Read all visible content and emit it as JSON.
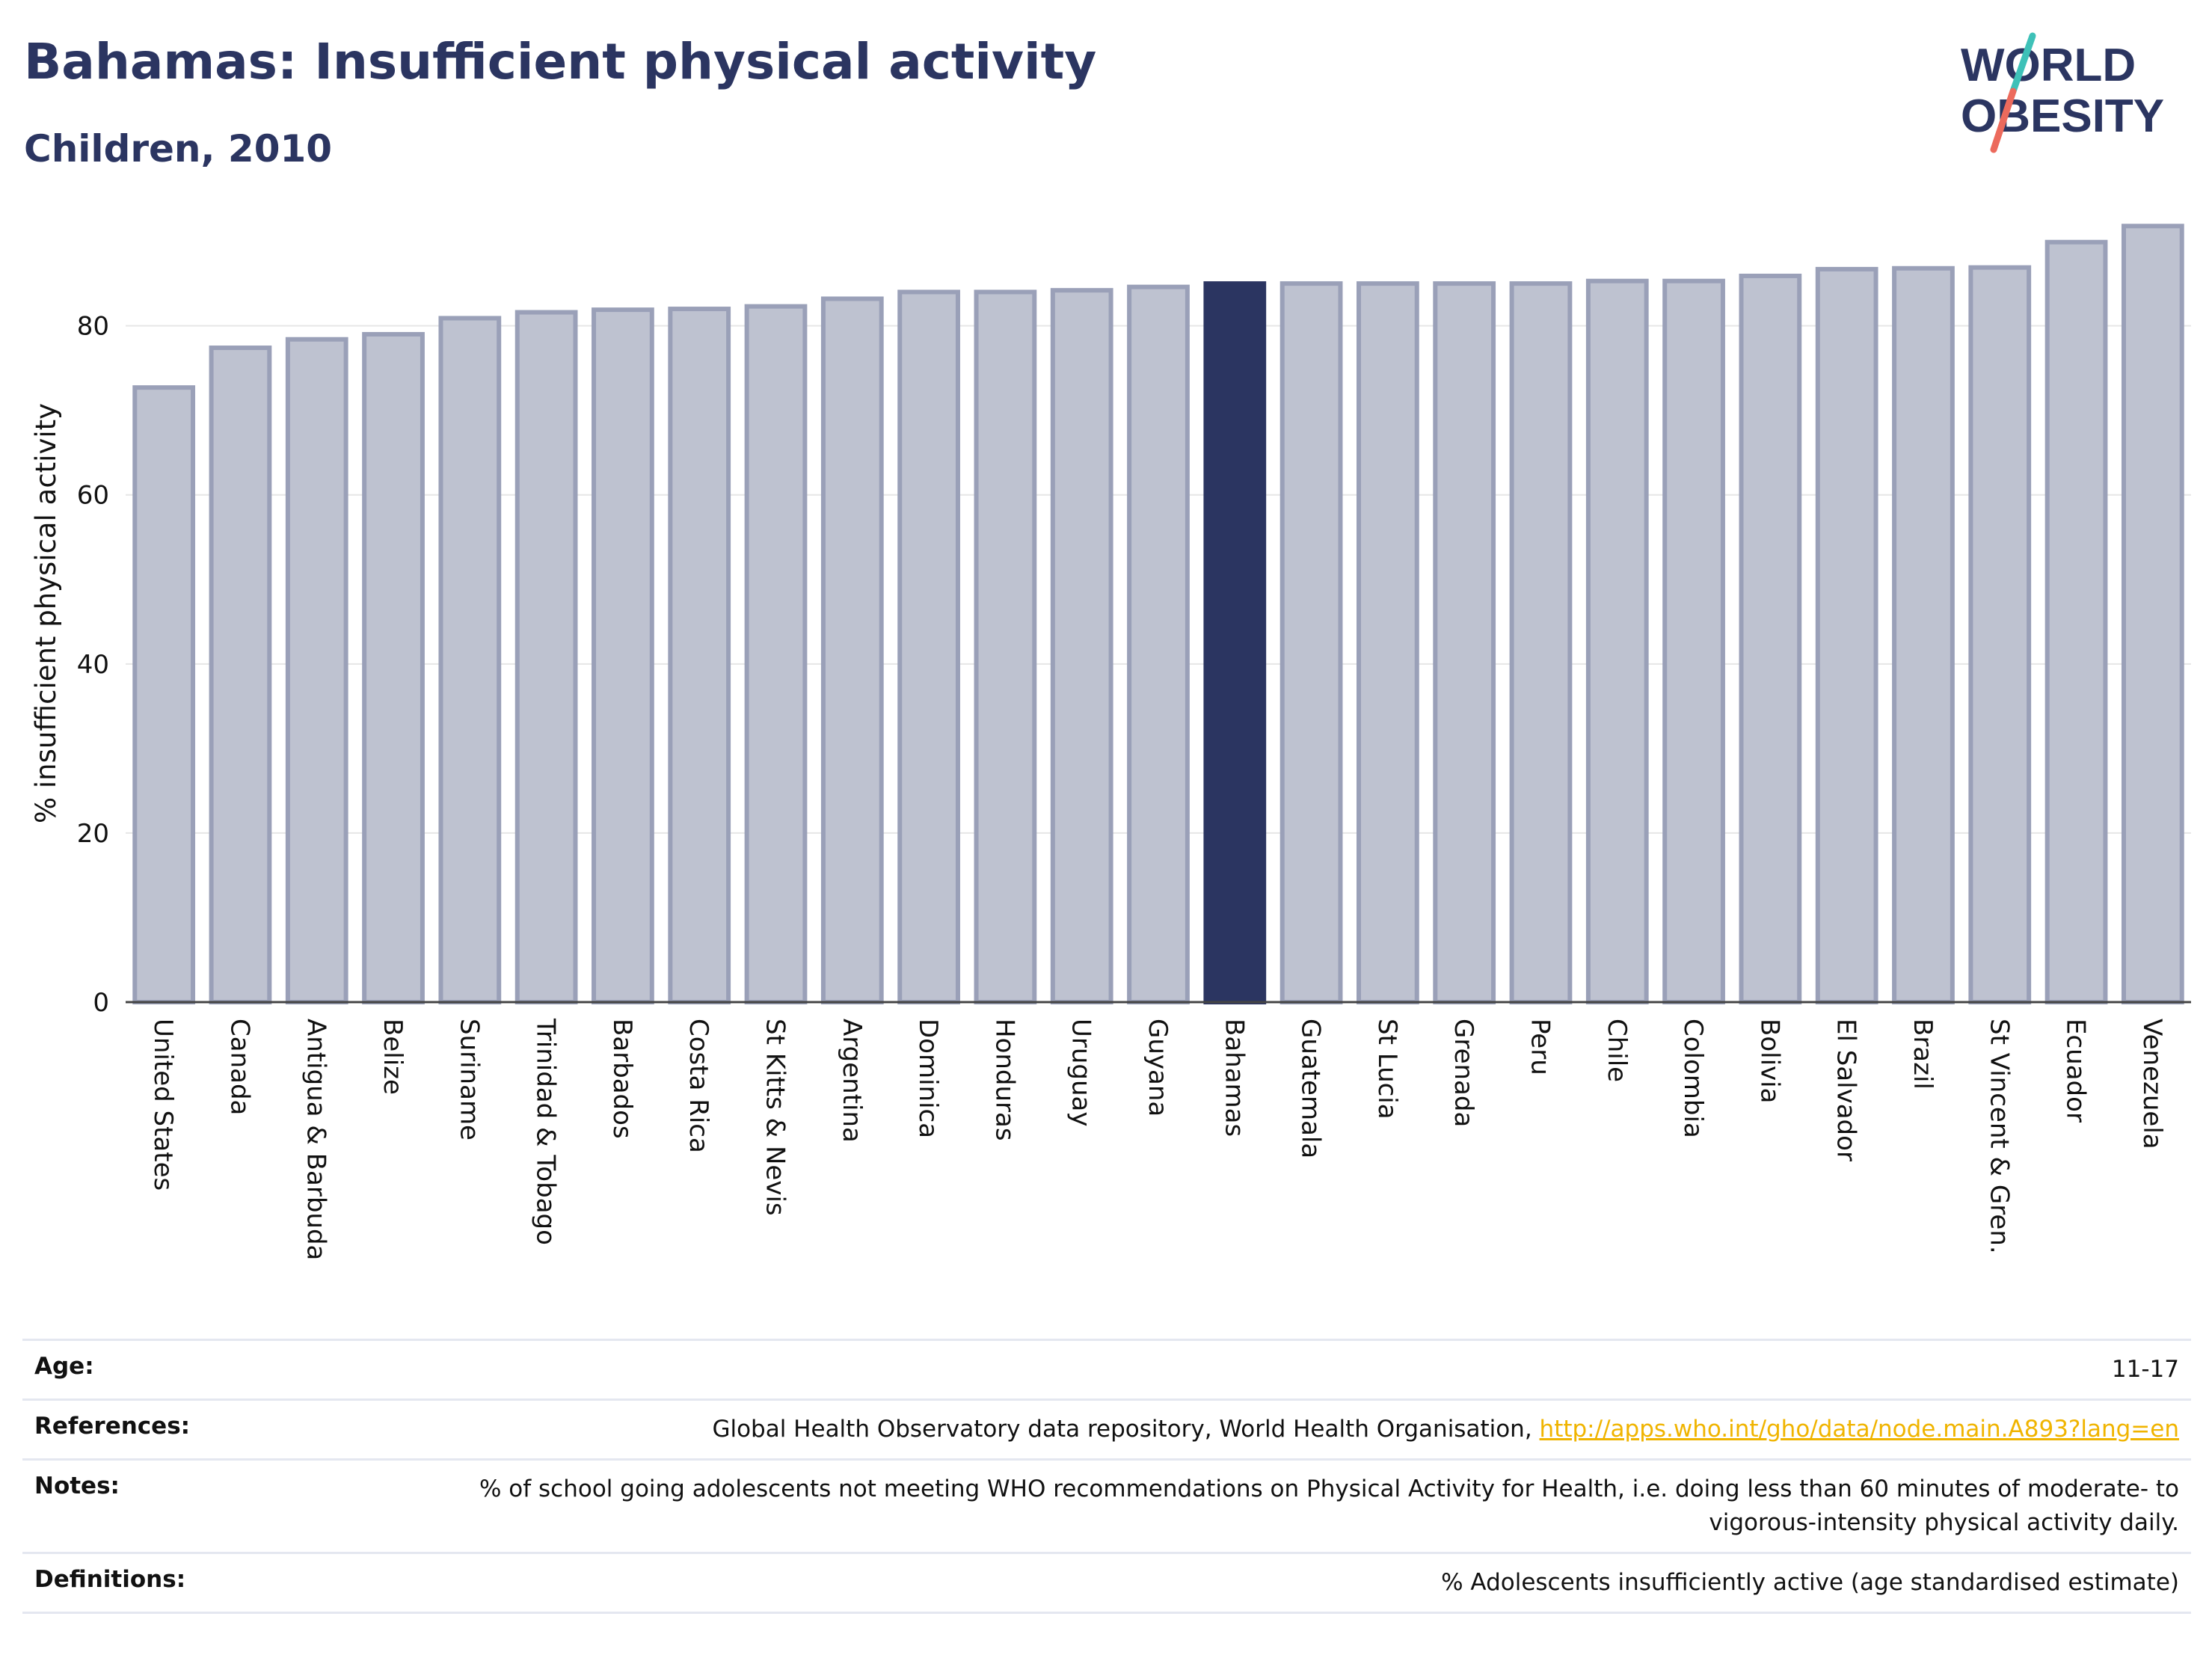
{
  "header": {
    "title": "Bahamas: Insufficient physical activity",
    "subtitle": "Children, 2010"
  },
  "logo": {
    "line1": "WORLD",
    "line2": "OBESITY"
  },
  "colors": {
    "title": "#2b3561",
    "highlight_bar": "#2b3561",
    "bar_fill": "#bec2d0",
    "bar_stroke": "#9aa0b8",
    "link": "#f0b400",
    "logo_teal": "#3ec1b8",
    "logo_coral": "#ec6a5c"
  },
  "chart_data": {
    "type": "bar",
    "ylabel": "% insufficient physical activity",
    "xlabel": "",
    "ylim": [
      0,
      92
    ],
    "yticks": [
      0,
      20,
      40,
      60,
      80
    ],
    "grid": true,
    "highlight": "Bahamas",
    "categories": [
      "United States",
      "Canada",
      "Antigua & Barbuda",
      "Belize",
      "Suriname",
      "Trinidad & Tobago",
      "Barbados",
      "Costa Rica",
      "St Kitts & Nevis",
      "Argentina",
      "Dominica",
      "Honduras",
      "Uruguay",
      "Guyana",
      "Bahamas",
      "Guatemala",
      "St Lucia",
      "Grenada",
      "Peru",
      "Chile",
      "Colombia",
      "Bolivia",
      "El Salvador",
      "Brazil",
      "St Vincent & Gren.",
      "Ecuador",
      "Venezuela"
    ],
    "values": [
      72.7,
      77.4,
      78.4,
      79.0,
      80.9,
      81.6,
      81.9,
      82.0,
      82.3,
      83.2,
      84.0,
      84.0,
      84.2,
      84.6,
      85.0,
      85.0,
      85.0,
      85.0,
      85.0,
      85.3,
      85.3,
      85.9,
      86.7,
      86.8,
      86.9,
      89.9,
      91.8
    ]
  },
  "info": {
    "age_label": "Age:",
    "age_value": "11-17",
    "references_label": "References:",
    "references_text": "Global Health Observatory data repository, World Health Organisation,",
    "references_link": "http://apps.who.int/gho/data/node.main.A893?lang=en",
    "notes_label": "Notes:",
    "notes_value": "% of school going adolescents not meeting WHO recommendations on Physical Activity for Health, i.e. doing less than 60 minutes of moderate- to vigorous-intensity physical activity daily.",
    "definitions_label": "Definitions:",
    "definitions_value": "% Adolescents insufficiently active (age standardised estimate)"
  }
}
